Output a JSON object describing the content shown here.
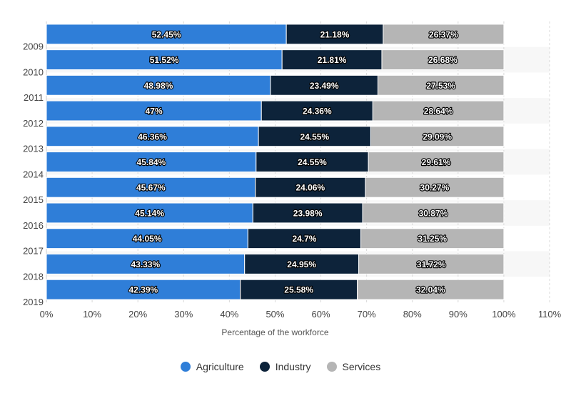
{
  "chart_data": {
    "type": "bar",
    "orientation": "horizontal",
    "stacked": true,
    "title": "",
    "xlabel": "Percentage of the workforce",
    "ylabel": "",
    "xlim": [
      0,
      110
    ],
    "x_ticks": [
      "0%",
      "10%",
      "20%",
      "30%",
      "40%",
      "50%",
      "60%",
      "70%",
      "80%",
      "90%",
      "100%",
      "110%"
    ],
    "categories": [
      "2009",
      "2010",
      "2011",
      "2012",
      "2013",
      "2014",
      "2015",
      "2016",
      "2017",
      "2018",
      "2019"
    ],
    "series": [
      {
        "name": "Agriculture",
        "color": "#2f7ed8",
        "values": [
          52.45,
          51.52,
          48.98,
          47,
          46.36,
          45.84,
          45.67,
          45.14,
          44.05,
          43.33,
          42.39
        ],
        "labels": [
          "52.45%",
          "51.52%",
          "48.98%",
          "47%",
          "46.36%",
          "45.84%",
          "45.67%",
          "45.14%",
          "44.05%",
          "43.33%",
          "42.39%"
        ]
      },
      {
        "name": "Industry",
        "color": "#0d233a",
        "values": [
          21.18,
          21.81,
          23.49,
          24.36,
          24.55,
          24.55,
          24.06,
          23.98,
          24.7,
          24.95,
          25.58
        ],
        "labels": [
          "21.18%",
          "21.81%",
          "23.49%",
          "24.36%",
          "24.55%",
          "24.55%",
          "24.06%",
          "23.98%",
          "24.7%",
          "24.95%",
          "25.58%"
        ]
      },
      {
        "name": "Services",
        "color": "#b5b5b5",
        "values": [
          26.37,
          26.68,
          27.53,
          28.64,
          29.09,
          29.61,
          30.27,
          30.87,
          31.25,
          31.72,
          32.04
        ],
        "labels": [
          "26.37%",
          "26.68%",
          "27.53%",
          "28.64%",
          "29.09%",
          "29.61%",
          "30.27%",
          "30.87%",
          "31.25%",
          "31.72%",
          "32.04%"
        ]
      }
    ],
    "grid": true,
    "legend_position": "bottom-center"
  }
}
